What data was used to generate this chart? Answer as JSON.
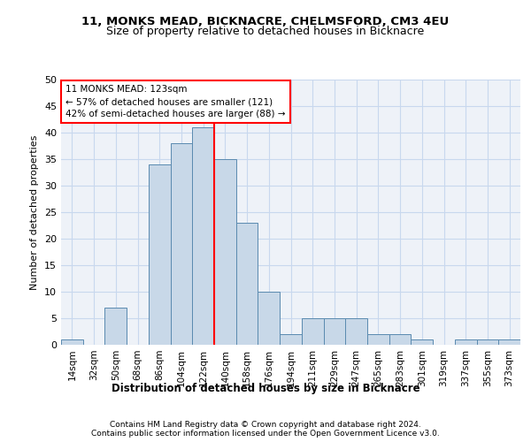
{
  "title1": "11, MONKS MEAD, BICKNACRE, CHELMSFORD, CM3 4EU",
  "title2": "Size of property relative to detached houses in Bicknacre",
  "xlabel": "Distribution of detached houses by size in Bicknacre",
  "ylabel": "Number of detached properties",
  "categories": [
    "14sqm",
    "32sqm",
    "50sqm",
    "68sqm",
    "86sqm",
    "104sqm",
    "122sqm",
    "140sqm",
    "158sqm",
    "176sqm",
    "194sqm",
    "211sqm",
    "229sqm",
    "247sqm",
    "265sqm",
    "283sqm",
    "301sqm",
    "319sqm",
    "337sqm",
    "355sqm",
    "373sqm"
  ],
  "values": [
    1,
    0,
    7,
    0,
    34,
    38,
    41,
    35,
    23,
    10,
    2,
    5,
    5,
    5,
    2,
    2,
    1,
    0,
    1,
    1,
    1
  ],
  "bar_color": "#c8d8e8",
  "bar_edge_color": "#5a8ab0",
  "property_line_index": 6,
  "annotation_title": "11 MONKS MEAD: 123sqm",
  "annotation_line1": "← 57% of detached houses are smaller (121)",
  "annotation_line2": "42% of semi-detached houses are larger (88) →",
  "ylim": [
    0,
    50
  ],
  "yticks": [
    0,
    5,
    10,
    15,
    20,
    25,
    30,
    35,
    40,
    45,
    50
  ],
  "grid_color": "#c8d8ee",
  "background_color": "#eef2f8",
  "footer1": "Contains HM Land Registry data © Crown copyright and database right 2024.",
  "footer2": "Contains public sector information licensed under the Open Government Licence v3.0."
}
